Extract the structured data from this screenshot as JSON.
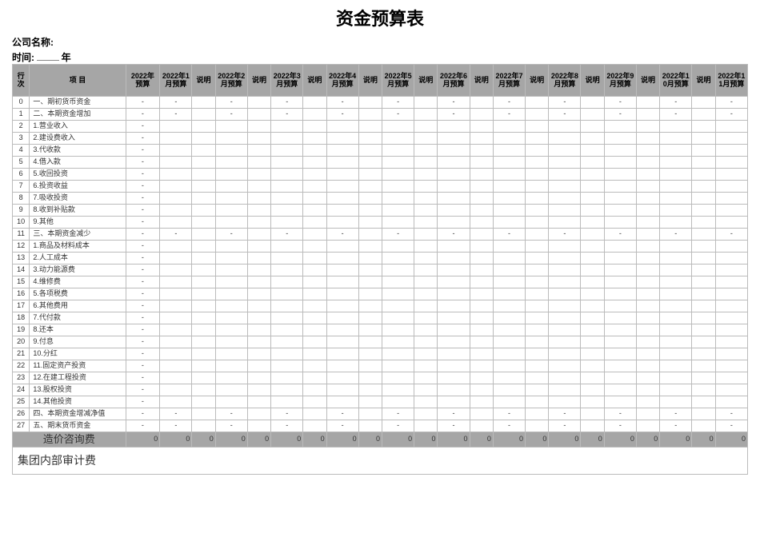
{
  "title": "资金预算表",
  "company_label": "公司名称:",
  "time_label": "时间:",
  "time_suffix": "年",
  "columns": {
    "rownum": "行次",
    "item": "项 目",
    "year": "2022年预算",
    "months": [
      "2022年1月预算",
      "2022年2月预算",
      "2022年3月预算",
      "2022年4月预算",
      "2022年5月预算",
      "2022年6月预算",
      "2022年7月预算",
      "2022年8月预算",
      "2022年9月预算",
      "2022年10月预算",
      "2022年11月预算"
    ],
    "desc": "说明"
  },
  "items": [
    {
      "n": "0",
      "t": "一、期初货币资金",
      "section": true
    },
    {
      "n": "1",
      "t": "二、本期资金增加",
      "section": true
    },
    {
      "n": "2",
      "t": "1.营业收入"
    },
    {
      "n": "3",
      "t": "2.建设费收入"
    },
    {
      "n": "4",
      "t": "3.代收款"
    },
    {
      "n": "5",
      "t": "4.借入款"
    },
    {
      "n": "6",
      "t": "5.收回投资"
    },
    {
      "n": "7",
      "t": "6.投资收益"
    },
    {
      "n": "8",
      "t": "7.吸收投资"
    },
    {
      "n": "9",
      "t": "8.收到补贴款"
    },
    {
      "n": "10",
      "t": "9.其他"
    },
    {
      "n": "11",
      "t": "三、本期资金减少",
      "section": true
    },
    {
      "n": "12",
      "t": "1.商品及材料成本"
    },
    {
      "n": "13",
      "t": "2.人工成本"
    },
    {
      "n": "14",
      "t": "3.动力能源费"
    },
    {
      "n": "15",
      "t": "4.维修费"
    },
    {
      "n": "16",
      "t": "5.各项税费"
    },
    {
      "n": "17",
      "t": "6.其他费用"
    },
    {
      "n": "18",
      "t": "7.代付款"
    },
    {
      "n": "19",
      "t": "8.还本"
    },
    {
      "n": "20",
      "t": "9.付息"
    },
    {
      "n": "21",
      "t": "10.分红"
    },
    {
      "n": "22",
      "t": "11.固定资产投资"
    },
    {
      "n": "23",
      "t": "12.在建工程投资"
    },
    {
      "n": "24",
      "t": "13.股权投资"
    },
    {
      "n": "25",
      "t": "14.其他投资"
    },
    {
      "n": "26",
      "t": "四、本期资金增减净值",
      "section": true
    },
    {
      "n": "27",
      "t": "五、期末货币资金",
      "section": true
    }
  ],
  "dash": "-",
  "totals_label": "造价咨询费",
  "totals_values": [
    0,
    0,
    0,
    0,
    0,
    0,
    0,
    0,
    0,
    0,
    0,
    0,
    0,
    0,
    0,
    0,
    0,
    0,
    0,
    0,
    0,
    0
  ],
  "audit_label": "集团内部审计费",
  "style": {
    "header_bg": "#a6a6a6",
    "totals_bg": "#a6a6a6",
    "border_color": "#bbbbbb",
    "background": "#ffffff",
    "title_fontsize": 22,
    "body_fontsize": 9
  }
}
